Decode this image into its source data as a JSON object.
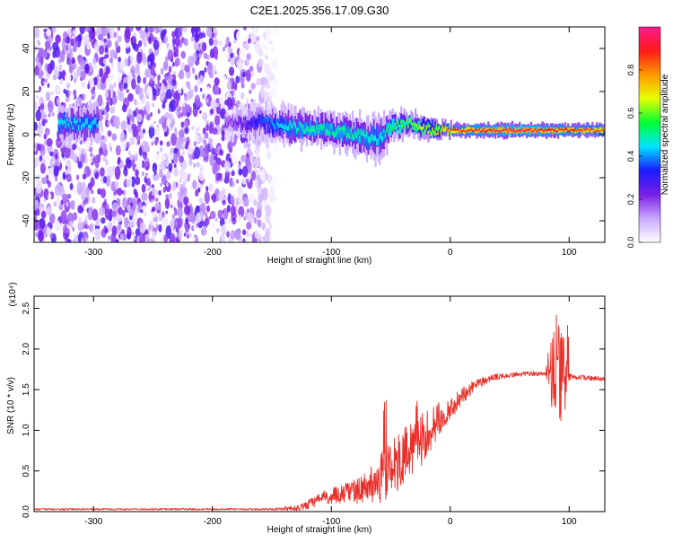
{
  "title": "C2E1.2025.356.17.09.G30",
  "chart_data": [
    {
      "type": "heatmap",
      "title": "C2E1.2025.356.17.09.G30",
      "xlabel": "Height of straight line (km)",
      "ylabel": "Frequency (Hz)",
      "xlim": [
        -350,
        130
      ],
      "ylim": [
        -50,
        50
      ],
      "x_ticks": [
        -300,
        -200,
        -100,
        0,
        100
      ],
      "y_ticks": [
        -40,
        -20,
        0,
        20,
        40
      ],
      "colorbar": {
        "label": "Normalized spectral amplitude",
        "range": [
          0,
          1
        ],
        "ticks": [
          0.0,
          0.2,
          0.4,
          0.6,
          0.8
        ],
        "colors": [
          "#ffffff",
          "#c9a8ff",
          "#7a1ee6",
          "#1a1aff",
          "#00e5ff",
          "#00ff33",
          "#e6ff00",
          "#ff9900",
          "#ff1a1a",
          "#ff1a8c"
        ]
      },
      "scatter_region": {
        "x_range": [
          -350,
          -145
        ],
        "y_range": [
          -50,
          50
        ]
      },
      "band": [
        {
          "x": -330,
          "freq": 5,
          "width": 8,
          "amp": 0.45
        },
        {
          "x": -305,
          "freq": 5,
          "width": 8,
          "amp": 0.45
        },
        {
          "x": -185,
          "freq": 5,
          "width": 6,
          "amp": 0.2
        },
        {
          "x": -160,
          "freq": 6,
          "width": 8,
          "amp": 0.35
        },
        {
          "x": -140,
          "freq": 4,
          "width": 8,
          "amp": 0.45
        },
        {
          "x": -120,
          "freq": 3,
          "width": 8,
          "amp": 0.5
        },
        {
          "x": -100,
          "freq": 2,
          "width": 8,
          "amp": 0.5
        },
        {
          "x": -80,
          "freq": 0,
          "width": 8,
          "amp": 0.5
        },
        {
          "x": -60,
          "freq": -2,
          "width": 10,
          "amp": 0.45
        },
        {
          "x": -50,
          "freq": 4,
          "width": 6,
          "amp": 0.55
        },
        {
          "x": -35,
          "freq": 5,
          "width": 5,
          "amp": 0.6
        },
        {
          "x": -15,
          "freq": 2,
          "width": 4,
          "amp": 0.7
        },
        {
          "x": 0,
          "freq": 2,
          "width": 3,
          "amp": 0.85
        },
        {
          "x": 30,
          "freq": 2,
          "width": 3,
          "amp": 0.92
        },
        {
          "x": 60,
          "freq": 2,
          "width": 3,
          "amp": 0.95
        },
        {
          "x": 90,
          "freq": 2,
          "width": 3,
          "amp": 0.9
        },
        {
          "x": 130,
          "freq": 2,
          "width": 3,
          "amp": 0.85
        }
      ]
    },
    {
      "type": "line",
      "xlabel": "Height of straight line (km)",
      "ylabel": "SNR (10 * v/v)",
      "y_multiplier": "(x10⁴)",
      "xlim": [
        -350,
        130
      ],
      "ylim": [
        0,
        2.65
      ],
      "x_ticks": [
        -300,
        -200,
        -100,
        0,
        100
      ],
      "y_ticks": [
        0.0,
        0.5,
        1.0,
        1.5,
        2.0,
        2.5
      ],
      "series": [
        {
          "color": "#e8302a",
          "x": [
            -350,
            -300,
            -250,
            -200,
            -150,
            -125,
            -110,
            -100,
            -90,
            -80,
            -70,
            -60,
            -50,
            -40,
            -30,
            -20,
            -10,
            0,
            10,
            20,
            30,
            40,
            50,
            60,
            70,
            80,
            85,
            88,
            92,
            96,
            100,
            110,
            120,
            130
          ],
          "y": [
            0.03,
            0.03,
            0.03,
            0.03,
            0.03,
            0.05,
            0.15,
            0.2,
            0.22,
            0.25,
            0.3,
            0.4,
            0.5,
            0.65,
            0.8,
            0.95,
            1.1,
            1.28,
            1.42,
            1.55,
            1.62,
            1.66,
            1.68,
            1.69,
            1.7,
            1.7,
            1.72,
            1.75,
            1.7,
            1.62,
            1.65,
            1.65,
            1.64,
            1.63
          ],
          "noise": [
            0.01,
            0.01,
            0.01,
            0.01,
            0.01,
            0.04,
            0.08,
            0.1,
            0.12,
            0.15,
            0.2,
            0.3,
            0.35,
            0.4,
            0.35,
            0.3,
            0.25,
            0.15,
            0.12,
            0.08,
            0.05,
            0.04,
            0.03,
            0.03,
            0.03,
            0.03,
            0.5,
            0.8,
            0.6,
            0.5,
            0.05,
            0.03,
            0.03,
            0.03
          ]
        }
      ]
    }
  ]
}
